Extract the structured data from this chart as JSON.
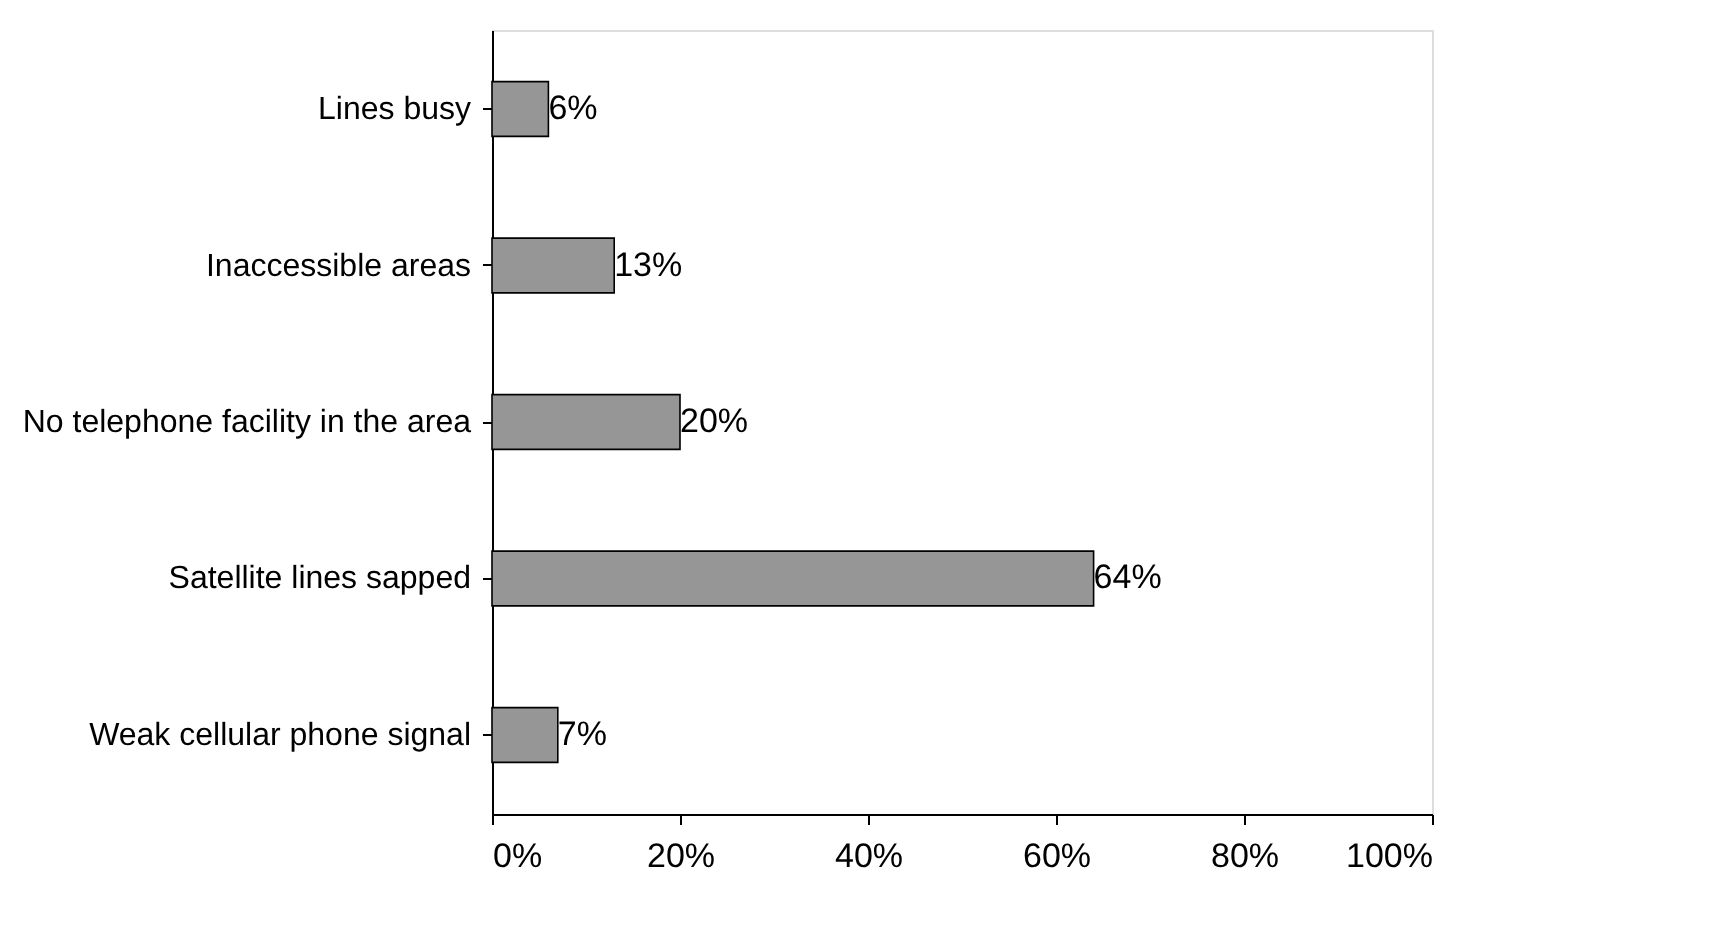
{
  "chart_data": {
    "type": "bar",
    "orientation": "horizontal",
    "categories": [
      "Lines busy",
      "Inaccessible areas",
      "No telephone facility in the area",
      "Satellite lines sapped",
      "Weak cellular phone signal"
    ],
    "values": [
      6,
      13,
      20,
      64,
      7
    ],
    "value_labels": [
      "6%",
      "13%",
      "20%",
      "64%",
      "7%"
    ],
    "color": "#969696",
    "xlim": [
      0,
      100
    ],
    "xticks": [
      {
        "value": 0,
        "label": "0%"
      },
      {
        "value": 20,
        "label": "20%"
      },
      {
        "value": 40,
        "label": "40%"
      },
      {
        "value": 60,
        "label": "60%"
      },
      {
        "value": 80,
        "label": "80%"
      },
      {
        "value": 100,
        "label": "100%"
      }
    ],
    "grid": false
  }
}
